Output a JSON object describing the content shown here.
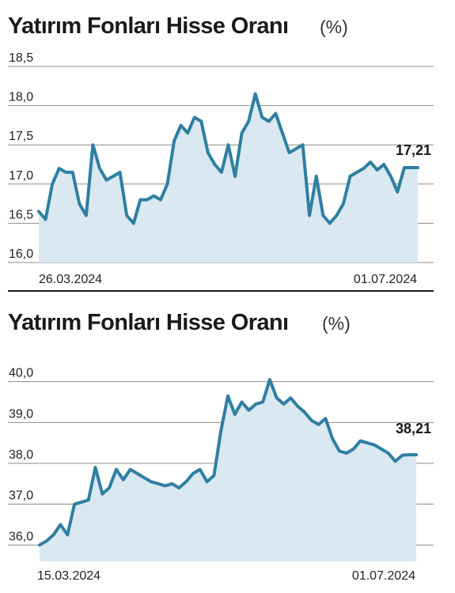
{
  "chart_data": [
    {
      "type": "area",
      "title": "Yatırım Fonları Hisse Oranı",
      "unit": "(%)",
      "y_ticks": [
        "18,5",
        "18,0",
        "17,5",
        "17,0",
        "16,5",
        "16,0"
      ],
      "ylim": [
        16.0,
        18.5
      ],
      "x_labels": [
        "26.03.2024",
        "01.07.2024"
      ],
      "last_value_label": "17,21",
      "line_color": "#2f7fa1",
      "fill_color": "#d9e8f1",
      "values": [
        16.65,
        16.55,
        17.0,
        17.2,
        17.15,
        17.15,
        16.75,
        16.6,
        17.5,
        17.2,
        17.05,
        17.1,
        17.15,
        16.6,
        16.5,
        16.8,
        16.8,
        16.85,
        16.8,
        17.0,
        17.55,
        17.75,
        17.65,
        17.85,
        17.8,
        17.4,
        17.25,
        17.15,
        17.5,
        17.1,
        17.65,
        17.8,
        18.15,
        17.85,
        17.8,
        17.9,
        17.65,
        17.4,
        17.45,
        17.5,
        16.6,
        17.1,
        16.6,
        16.5,
        16.6,
        16.75,
        17.1,
        17.15,
        17.2,
        17.28,
        17.18,
        17.25,
        17.1,
        16.9,
        17.21,
        17.21,
        17.21
      ]
    },
    {
      "type": "area",
      "title": "Yatırım Fonları Hisse Oranı",
      "unit": "(%)",
      "y_ticks": [
        "40,0",
        "39,0",
        "38,0",
        "37,0",
        "36,0"
      ],
      "ylim": [
        35.6,
        40.4
      ],
      "x_labels": [
        "15.03.2024",
        "01.07.2024"
      ],
      "last_value_label": "38,21",
      "line_color": "#2f7fa1",
      "fill_color": "#d9e8f1",
      "values": [
        36.0,
        36.1,
        36.25,
        36.5,
        36.25,
        37.0,
        37.05,
        37.1,
        37.9,
        37.25,
        37.4,
        37.85,
        37.6,
        37.85,
        37.75,
        37.65,
        37.55,
        37.5,
        37.45,
        37.5,
        37.4,
        37.55,
        37.75,
        37.85,
        37.55,
        37.7,
        38.8,
        39.65,
        39.2,
        39.5,
        39.3,
        39.45,
        39.5,
        40.05,
        39.6,
        39.45,
        39.6,
        39.4,
        39.25,
        39.05,
        38.95,
        39.1,
        38.6,
        38.3,
        38.25,
        38.35,
        38.55,
        38.5,
        38.45,
        38.35,
        38.25,
        38.05,
        38.2,
        38.21,
        38.21
      ]
    }
  ]
}
